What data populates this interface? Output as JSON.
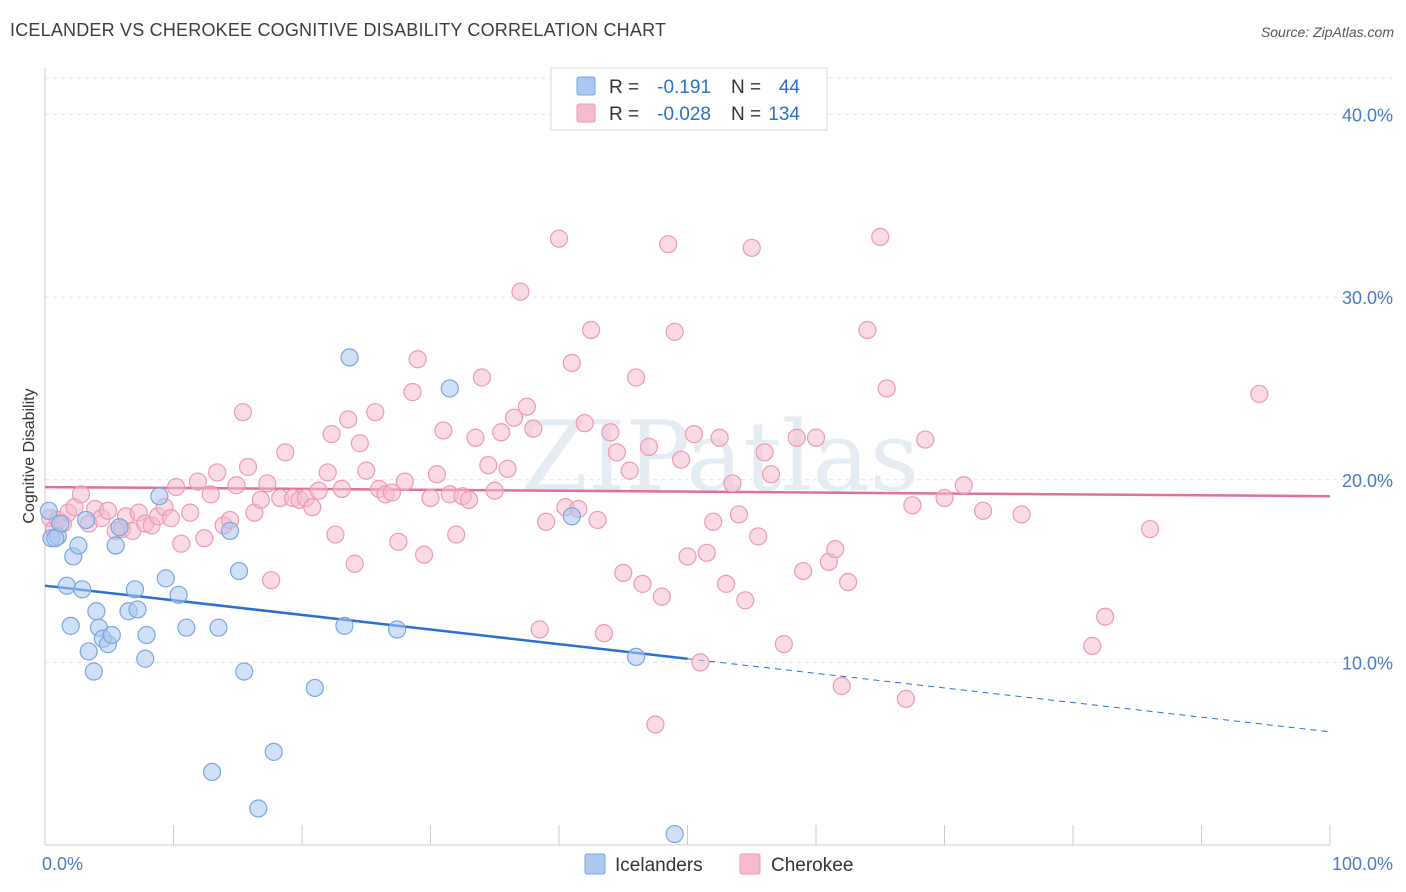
{
  "title": "ICELANDER VS CHEROKEE COGNITIVE DISABILITY CORRELATION CHART",
  "source": "Source: ZipAtlas.com",
  "watermark": "ZIPatlas",
  "colors": {
    "icelanders_fill": "#aac8f0",
    "icelanders_stroke": "#7aa6e0",
    "icelanders_line": "#2b6fd0",
    "cherokee_fill": "#f5bccd",
    "cherokee_stroke": "#ee9ab4",
    "cherokee_line": "#e0709a",
    "axis_label": "#4a7bc8",
    "grid": "#e4e4e4"
  },
  "legend": {
    "r_label": "R =",
    "n_label": "N =",
    "icelanders": {
      "r": "-0.191",
      "n": "44"
    },
    "cherokee": {
      "r": "-0.028",
      "n": "134"
    }
  },
  "chart_data": {
    "type": "scatter",
    "title": "ICELANDER VS CHEROKEE COGNITIVE DISABILITY CORRELATION CHART",
    "xlabel": "",
    "ylabel": "Cognitive Disability",
    "xlim": [
      0,
      100
    ],
    "ylim": [
      0,
      42
    ],
    "x_tick_labels": [
      "0.0%",
      "100.0%"
    ],
    "y_ticks": [
      10,
      20,
      30,
      40
    ],
    "y_tick_labels": [
      "10.0%",
      "20.0%",
      "30.0%",
      "40.0%"
    ],
    "grid": true,
    "legend_position": "top-center",
    "series": [
      {
        "name": "Icelanders",
        "trend": {
          "x0": 0,
          "y0": 14.2,
          "x1": 50,
          "y1": 10.2,
          "dashed_to_x": 100,
          "dashed_to_y": 6.2
        },
        "points": [
          [
            0.3,
            18.3
          ],
          [
            0.5,
            16.8
          ],
          [
            1.0,
            16.9
          ],
          [
            1.2,
            17.6
          ],
          [
            1.7,
            14.2
          ],
          [
            2.0,
            12.0
          ],
          [
            2.2,
            15.8
          ],
          [
            2.6,
            16.4
          ],
          [
            2.9,
            14.0
          ],
          [
            3.2,
            17.8
          ],
          [
            3.4,
            10.6
          ],
          [
            3.8,
            9.5
          ],
          [
            4.0,
            12.8
          ],
          [
            4.2,
            11.9
          ],
          [
            4.5,
            11.3
          ],
          [
            4.9,
            11.0
          ],
          [
            5.2,
            11.5
          ],
          [
            5.5,
            16.4
          ],
          [
            5.8,
            17.4
          ],
          [
            6.5,
            12.8
          ],
          [
            7.0,
            14.0
          ],
          [
            7.2,
            12.9
          ],
          [
            7.8,
            10.2
          ],
          [
            7.9,
            11.5
          ],
          [
            8.9,
            19.1
          ],
          [
            9.4,
            14.6
          ],
          [
            10.4,
            13.7
          ],
          [
            11.0,
            11.9
          ],
          [
            13.0,
            4.0
          ],
          [
            13.5,
            11.9
          ],
          [
            14.4,
            17.2
          ],
          [
            15.1,
            15.0
          ],
          [
            15.5,
            9.5
          ],
          [
            16.6,
            2.0
          ],
          [
            17.8,
            5.1
          ],
          [
            21.0,
            8.6
          ],
          [
            23.3,
            12.0
          ],
          [
            23.7,
            26.7
          ],
          [
            27.4,
            11.8
          ],
          [
            31.5,
            25.0
          ],
          [
            41.0,
            18.0
          ],
          [
            46.0,
            10.3
          ],
          [
            49.0,
            0.6
          ],
          [
            0.8,
            16.8
          ]
        ]
      },
      {
        "name": "Cherokee",
        "trend": {
          "x0": 0,
          "y0": 19.6,
          "x1": 100,
          "y1": 19.1
        },
        "points": [
          [
            0.4,
            17.9
          ],
          [
            0.7,
            17.3
          ],
          [
            1.0,
            17.8
          ],
          [
            1.4,
            17.6
          ],
          [
            1.8,
            18.2
          ],
          [
            2.3,
            18.5
          ],
          [
            2.8,
            19.2
          ],
          [
            3.4,
            17.6
          ],
          [
            3.9,
            18.4
          ],
          [
            4.4,
            17.9
          ],
          [
            4.9,
            18.3
          ],
          [
            5.5,
            17.2
          ],
          [
            6.0,
            17.3
          ],
          [
            6.3,
            18.0
          ],
          [
            6.8,
            17.2
          ],
          [
            7.3,
            18.2
          ],
          [
            7.8,
            17.6
          ],
          [
            8.3,
            17.5
          ],
          [
            8.8,
            18.0
          ],
          [
            9.3,
            18.5
          ],
          [
            9.8,
            17.9
          ],
          [
            10.2,
            19.6
          ],
          [
            10.6,
            16.5
          ],
          [
            11.3,
            18.2
          ],
          [
            11.9,
            19.9
          ],
          [
            12.4,
            16.8
          ],
          [
            12.9,
            19.2
          ],
          [
            13.4,
            20.4
          ],
          [
            13.9,
            17.5
          ],
          [
            14.4,
            17.8
          ],
          [
            14.9,
            19.7
          ],
          [
            15.4,
            23.7
          ],
          [
            15.8,
            20.7
          ],
          [
            16.3,
            18.2
          ],
          [
            16.8,
            18.9
          ],
          [
            17.3,
            19.8
          ],
          [
            17.6,
            14.5
          ],
          [
            18.3,
            19.0
          ],
          [
            18.7,
            21.5
          ],
          [
            19.3,
            19.0
          ],
          [
            19.8,
            18.9
          ],
          [
            20.3,
            19.0
          ],
          [
            20.8,
            18.5
          ],
          [
            21.3,
            19.4
          ],
          [
            22.0,
            20.4
          ],
          [
            22.3,
            22.5
          ],
          [
            22.6,
            17.0
          ],
          [
            23.1,
            19.5
          ],
          [
            23.6,
            23.3
          ],
          [
            24.1,
            15.4
          ],
          [
            24.5,
            22.0
          ],
          [
            25.0,
            20.5
          ],
          [
            25.7,
            23.7
          ],
          [
            26.0,
            19.5
          ],
          [
            26.5,
            19.2
          ],
          [
            27.0,
            19.3
          ],
          [
            27.5,
            16.6
          ],
          [
            28.0,
            19.9
          ],
          [
            28.6,
            24.8
          ],
          [
            29.0,
            26.6
          ],
          [
            29.5,
            15.9
          ],
          [
            30.0,
            19.0
          ],
          [
            30.5,
            20.3
          ],
          [
            31.0,
            22.7
          ],
          [
            31.5,
            19.2
          ],
          [
            32.0,
            17.0
          ],
          [
            32.5,
            19.1
          ],
          [
            33.0,
            18.9
          ],
          [
            33.5,
            22.3
          ],
          [
            34.0,
            25.6
          ],
          [
            34.5,
            20.8
          ],
          [
            35.0,
            19.4
          ],
          [
            35.5,
            22.6
          ],
          [
            36.0,
            20.6
          ],
          [
            36.5,
            23.4
          ],
          [
            37.0,
            30.3
          ],
          [
            37.5,
            24.0
          ],
          [
            38.0,
            22.8
          ],
          [
            38.5,
            11.8
          ],
          [
            39.0,
            17.7
          ],
          [
            40.0,
            33.2
          ],
          [
            40.5,
            18.5
          ],
          [
            41.0,
            26.4
          ],
          [
            41.5,
            18.4
          ],
          [
            42.0,
            23.1
          ],
          [
            42.5,
            28.2
          ],
          [
            43.0,
            17.8
          ],
          [
            43.5,
            11.6
          ],
          [
            44.0,
            22.6
          ],
          [
            44.5,
            21.5
          ],
          [
            45.0,
            14.9
          ],
          [
            45.5,
            20.5
          ],
          [
            46.0,
            25.6
          ],
          [
            46.5,
            14.3
          ],
          [
            47.0,
            21.8
          ],
          [
            47.5,
            6.6
          ],
          [
            48.0,
            13.6
          ],
          [
            48.5,
            32.9
          ],
          [
            49.0,
            28.1
          ],
          [
            49.5,
            21.1
          ],
          [
            50.0,
            15.8
          ],
          [
            50.5,
            22.5
          ],
          [
            51.0,
            10.0
          ],
          [
            51.5,
            16.0
          ],
          [
            52.0,
            17.7
          ],
          [
            52.5,
            22.3
          ],
          [
            53.0,
            14.3
          ],
          [
            53.5,
            19.8
          ],
          [
            54.0,
            18.1
          ],
          [
            54.5,
            13.4
          ],
          [
            55.0,
            32.7
          ],
          [
            55.5,
            16.9
          ],
          [
            56.0,
            21.5
          ],
          [
            56.5,
            20.3
          ],
          [
            57.5,
            11.0
          ],
          [
            58.5,
            22.3
          ],
          [
            59.0,
            15.0
          ],
          [
            60.0,
            22.3
          ],
          [
            61.0,
            15.5
          ],
          [
            61.5,
            16.2
          ],
          [
            62.0,
            8.7
          ],
          [
            62.5,
            14.4
          ],
          [
            64.0,
            28.2
          ],
          [
            65.0,
            33.3
          ],
          [
            65.5,
            25.0
          ],
          [
            67.0,
            8.0
          ],
          [
            67.5,
            18.6
          ],
          [
            68.5,
            22.2
          ],
          [
            70.0,
            19.0
          ],
          [
            71.5,
            19.7
          ],
          [
            73.0,
            18.3
          ],
          [
            76.0,
            18.1
          ],
          [
            81.5,
            10.9
          ],
          [
            82.5,
            12.5
          ],
          [
            86.0,
            17.3
          ],
          [
            94.5,
            24.7
          ]
        ]
      }
    ]
  },
  "bottom_legend": {
    "icelanders": "Icelanders",
    "cherokee": "Cherokee"
  }
}
